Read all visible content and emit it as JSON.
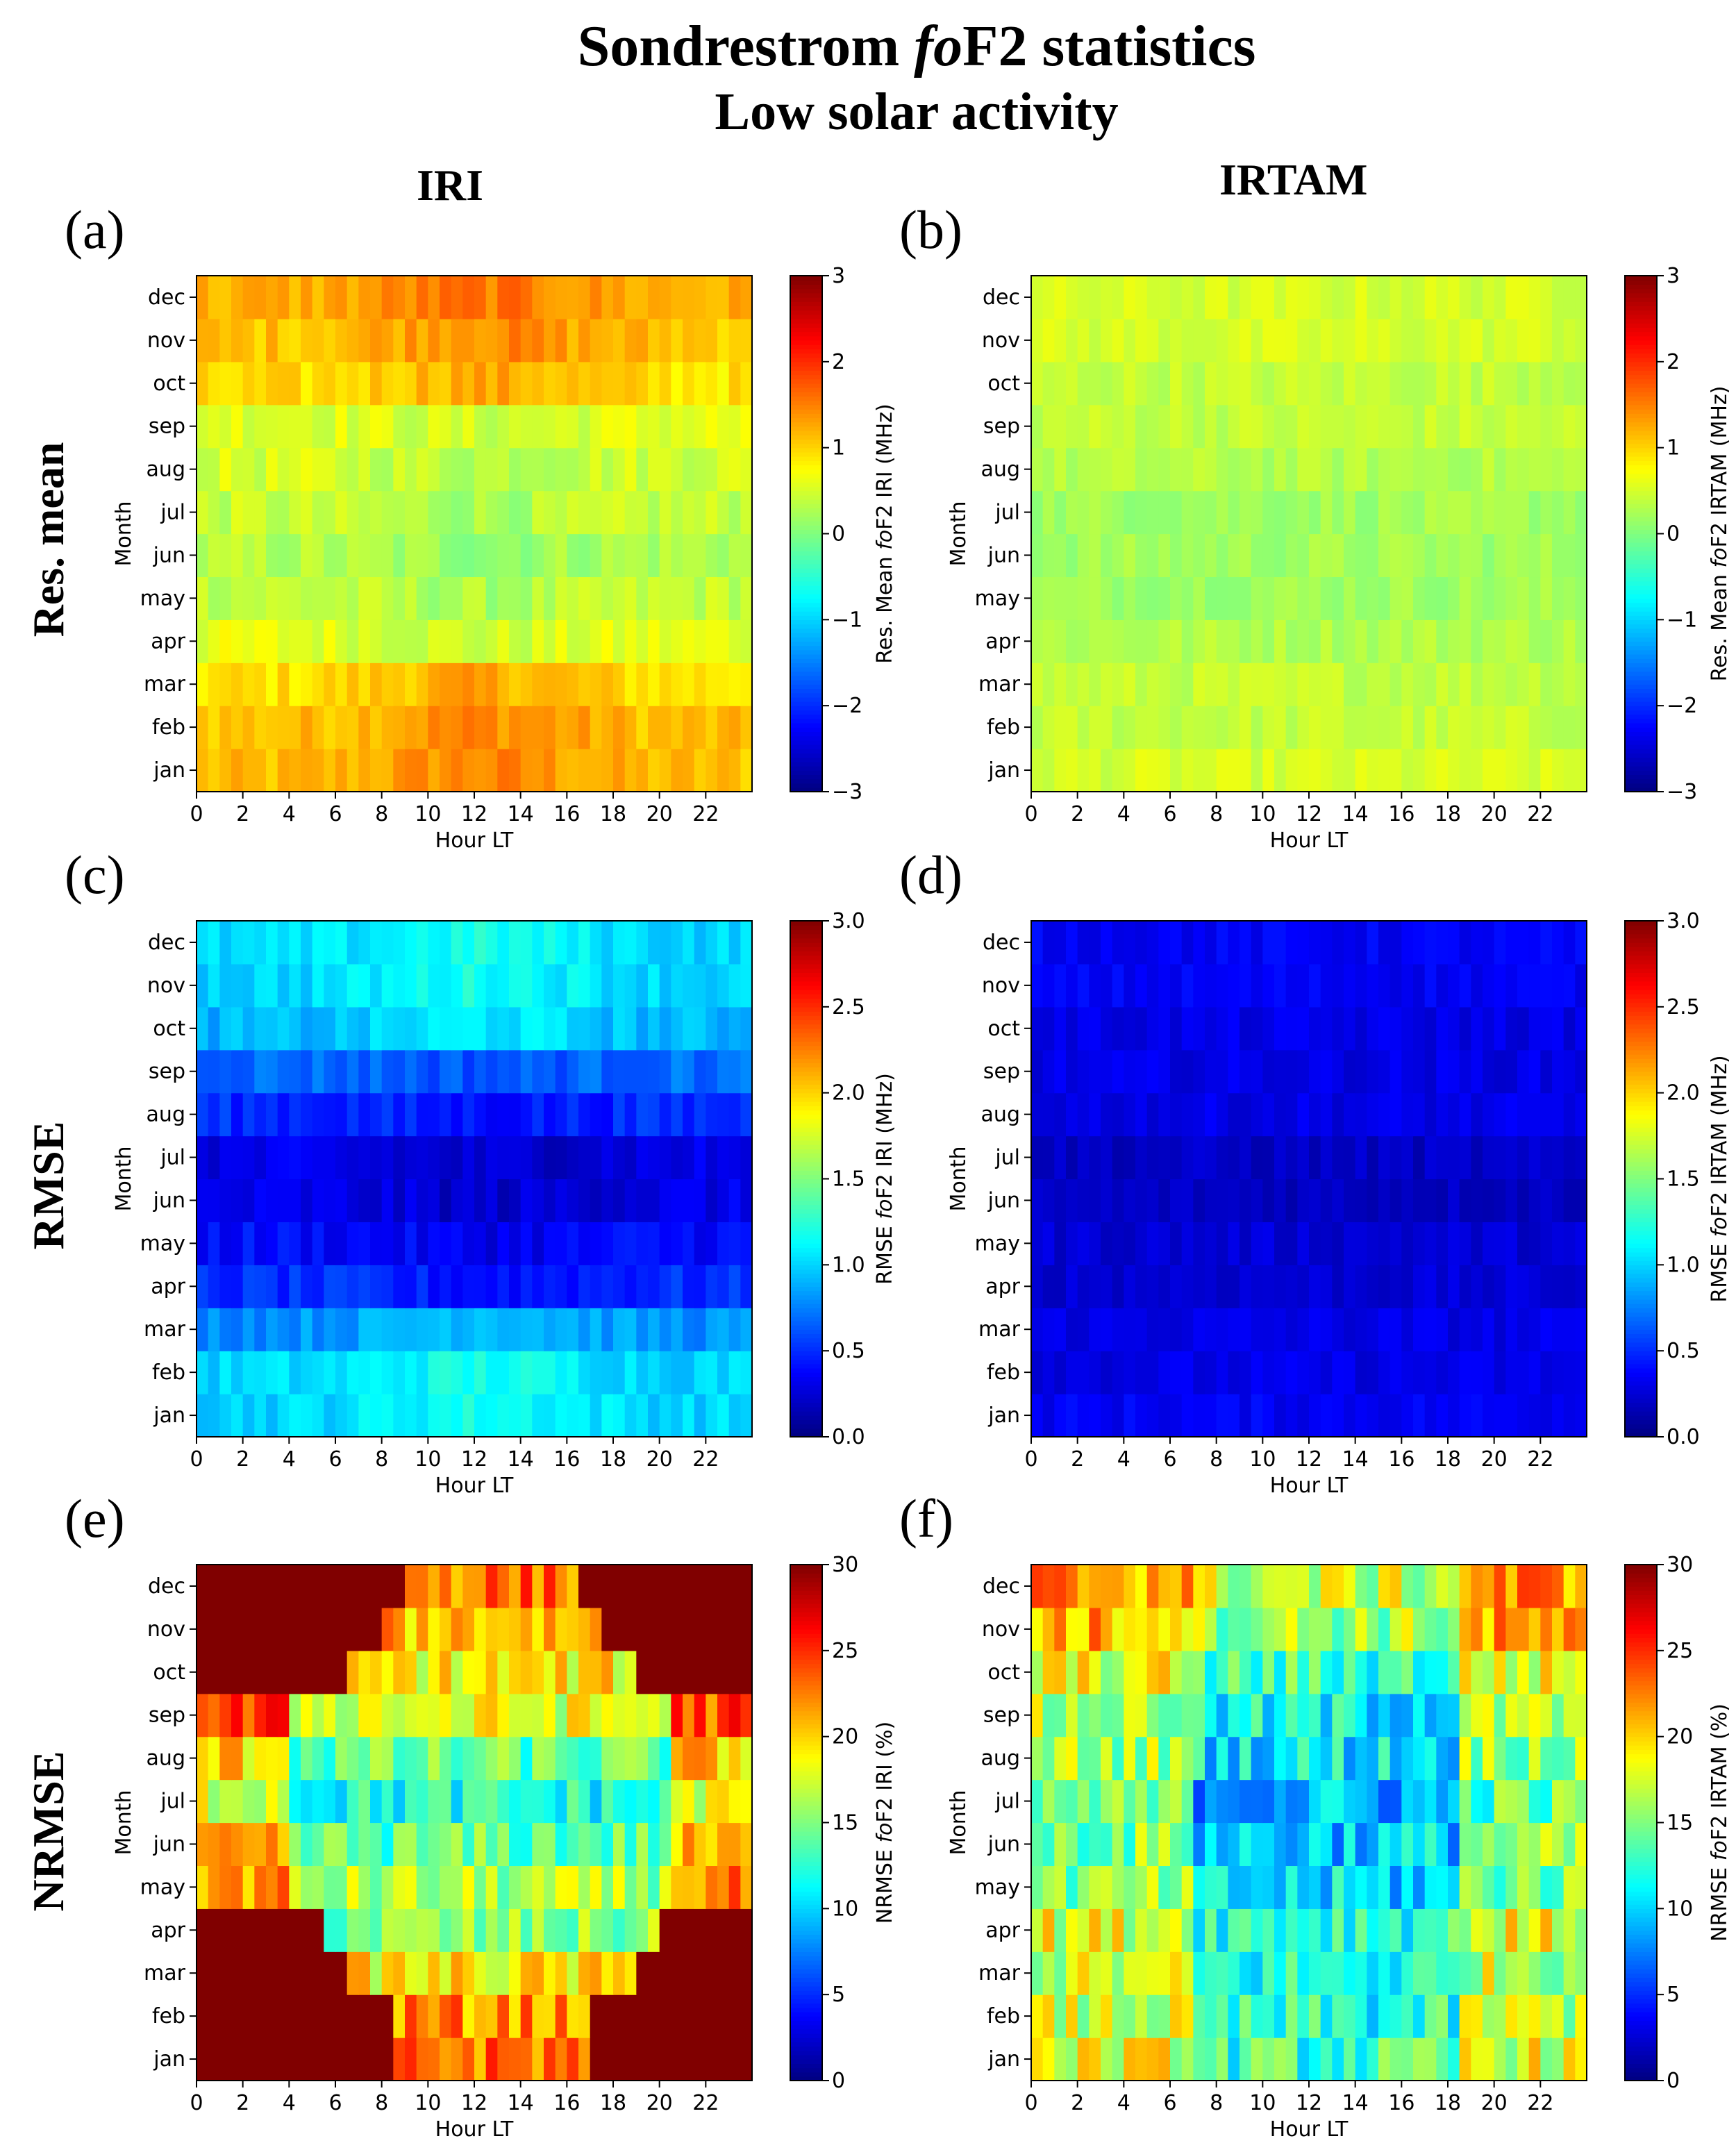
{
  "figure": {
    "title_prefix": "Sondrestrom ",
    "title_italic": "fo",
    "title_suffix": "F2 statistics",
    "subtitle": "Low solar activity",
    "col_headers": [
      "IRI",
      "IRTAM"
    ],
    "row_headers": [
      "Res. mean",
      "RMSE",
      "NRMSE"
    ]
  },
  "colors": {
    "background": "#ffffff",
    "axis": "#000000"
  },
  "chart_data": [
    {
      "type": "heatmap",
      "panel": "(a)",
      "xlabel": "Hour LT",
      "ylabel": "Month",
      "xticks": [
        "0",
        "2",
        "4",
        "6",
        "8",
        "10",
        "12",
        "14",
        "16",
        "18",
        "20",
        "22"
      ],
      "yticks": [
        "jan",
        "feb",
        "mar",
        "apr",
        "may",
        "jun",
        "jul",
        "aug",
        "sep",
        "oct",
        "nov",
        "dec"
      ],
      "colorbar_label_prefix": "Res. Mean ",
      "colorbar_label_italic": "fo",
      "colorbar_label_suffix": "F2 IRI (MHz)",
      "colorbar_ticks": [
        "−3",
        "−2",
        "−1",
        "0",
        "1",
        "2",
        "3"
      ],
      "zlim": [
        -3,
        3
      ],
      "colormap": "jet",
      "approx_month_means": [
        1.1,
        1.1,
        0.9,
        0.6,
        0.4,
        0.3,
        0.4,
        0.5,
        0.6,
        0.9,
        1.1,
        1.2
      ],
      "pattern": "seasonal"
    },
    {
      "type": "heatmap",
      "panel": "(b)",
      "xlabel": "Hour LT",
      "ylabel": "Month",
      "xticks": [
        "0",
        "2",
        "4",
        "6",
        "8",
        "10",
        "12",
        "14",
        "16",
        "18",
        "20",
        "22"
      ],
      "yticks": [
        "jan",
        "feb",
        "mar",
        "apr",
        "may",
        "jun",
        "jul",
        "aug",
        "sep",
        "oct",
        "nov",
        "dec"
      ],
      "colorbar_label_prefix": "Res. Mean ",
      "colorbar_label_italic": "fo",
      "colorbar_label_suffix": "F2 IRTAM (MHz)",
      "colorbar_ticks": [
        "−3",
        "−2",
        "−1",
        "0",
        "1",
        "2",
        "3"
      ],
      "zlim": [
        -3,
        3
      ],
      "colormap": "jet",
      "approx_month_means": [
        0.5,
        0.4,
        0.4,
        0.3,
        0.2,
        0.2,
        0.2,
        0.3,
        0.4,
        0.4,
        0.5,
        0.5
      ],
      "pattern": "uniform"
    },
    {
      "type": "heatmap",
      "panel": "(c)",
      "xlabel": "Hour LT",
      "ylabel": "Month",
      "xticks": [
        "0",
        "2",
        "4",
        "6",
        "8",
        "10",
        "12",
        "14",
        "16",
        "18",
        "20",
        "22"
      ],
      "yticks": [
        "jan",
        "feb",
        "mar",
        "apr",
        "may",
        "jun",
        "jul",
        "aug",
        "sep",
        "oct",
        "nov",
        "dec"
      ],
      "colorbar_label_prefix": "RMSE ",
      "colorbar_label_italic": "fo",
      "colorbar_label_suffix": "F2 IRI (MHz)",
      "colorbar_ticks": [
        "0.0",
        "0.5",
        "1.0",
        "1.5",
        "2.0",
        "2.5",
        "3.0"
      ],
      "zlim": [
        0,
        3
      ],
      "colormap": "jet",
      "approx_month_means": [
        1.0,
        1.0,
        0.8,
        0.5,
        0.4,
        0.3,
        0.3,
        0.5,
        0.7,
        0.9,
        1.0,
        1.0
      ],
      "pattern": "seasonal"
    },
    {
      "type": "heatmap",
      "panel": "(d)",
      "xlabel": "Hour LT",
      "ylabel": "Month",
      "xticks": [
        "0",
        "2",
        "4",
        "6",
        "8",
        "10",
        "12",
        "14",
        "16",
        "18",
        "20",
        "22"
      ],
      "yticks": [
        "jan",
        "feb",
        "mar",
        "apr",
        "may",
        "jun",
        "jul",
        "aug",
        "sep",
        "oct",
        "nov",
        "dec"
      ],
      "colorbar_label_prefix": "RMSE ",
      "colorbar_label_italic": "fo",
      "colorbar_label_suffix": "F2 IRTAM (MHz)",
      "colorbar_ticks": [
        "0.0",
        "0.5",
        "1.0",
        "1.5",
        "2.0",
        "2.5",
        "3.0"
      ],
      "zlim": [
        0,
        3
      ],
      "colormap": "jet",
      "approx_month_means": [
        0.35,
        0.3,
        0.3,
        0.25,
        0.25,
        0.2,
        0.2,
        0.3,
        0.3,
        0.3,
        0.35,
        0.35
      ],
      "pattern": "uniform"
    },
    {
      "type": "heatmap",
      "panel": "(e)",
      "xlabel": "Hour LT",
      "ylabel": "Month",
      "xticks": [
        "0",
        "2",
        "4",
        "6",
        "8",
        "10",
        "12",
        "14",
        "16",
        "18",
        "20",
        "22"
      ],
      "yticks": [
        "jan",
        "feb",
        "mar",
        "apr",
        "may",
        "jun",
        "jul",
        "aug",
        "sep",
        "oct",
        "nov",
        "dec"
      ],
      "colorbar_label_prefix": "NRMSE ",
      "colorbar_label_italic": "fo",
      "colorbar_label_suffix": "F2 IRI (%)",
      "colorbar_ticks": [
        "0",
        "5",
        "10",
        "15",
        "20",
        "25",
        "30"
      ],
      "zlim": [
        0,
        30
      ],
      "colormap": "jet",
      "approx_month_means": [
        26,
        25,
        22,
        18,
        16,
        14,
        12,
        14,
        18,
        22,
        24,
        26
      ],
      "pattern": "nrmse"
    },
    {
      "type": "heatmap",
      "panel": "(f)",
      "xlabel": "Hour LT",
      "ylabel": "Month",
      "xticks": [
        "0",
        "2",
        "4",
        "6",
        "8",
        "10",
        "12",
        "14",
        "16",
        "18",
        "20",
        "22"
      ],
      "yticks": [
        "jan",
        "feb",
        "mar",
        "apr",
        "may",
        "jun",
        "jul",
        "aug",
        "sep",
        "oct",
        "nov",
        "dec"
      ],
      "colorbar_label_prefix": "NRMSE ",
      "colorbar_label_italic": "fo",
      "colorbar_label_suffix": "F2 IRTAM (%)",
      "colorbar_ticks": [
        "0",
        "5",
        "10",
        "15",
        "20",
        "25",
        "30"
      ],
      "zlim": [
        0,
        30
      ],
      "colormap": "jet",
      "approx_month_means": [
        15,
        14,
        14,
        15,
        12,
        12,
        11,
        13,
        13,
        15,
        18,
        19
      ],
      "pattern": "irtam_nrmse"
    }
  ]
}
